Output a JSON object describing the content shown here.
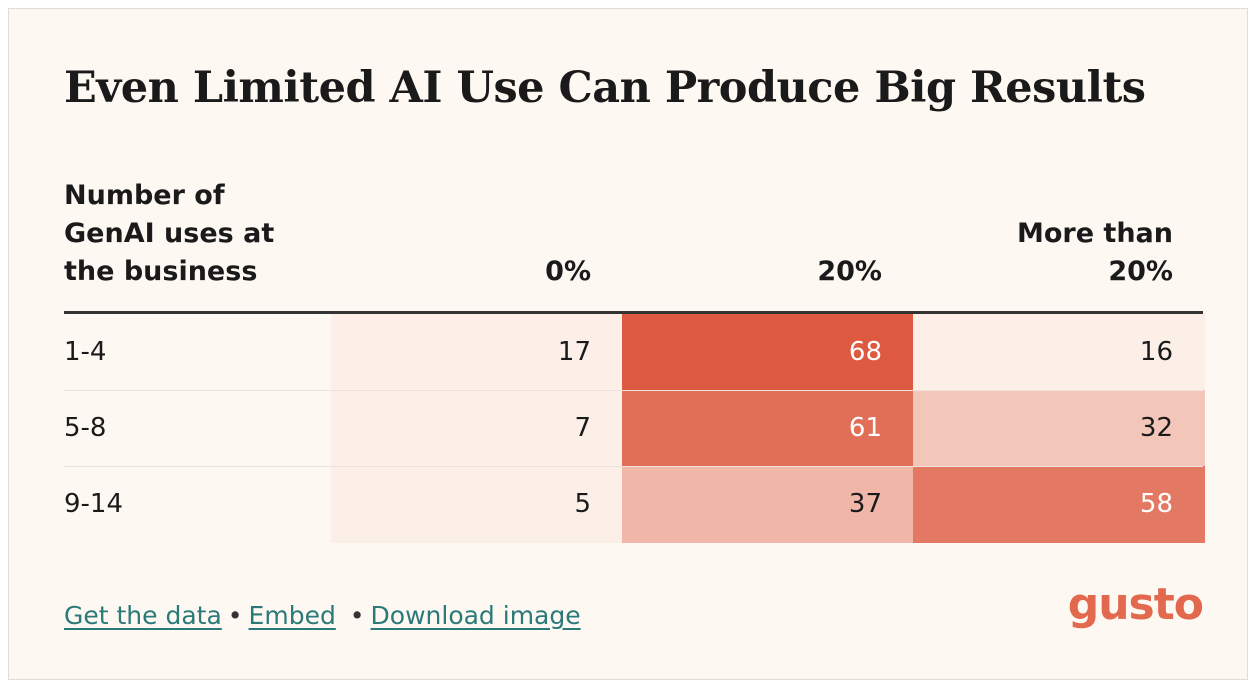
{
  "title": "Even Limited AI Use Can Produce Big Results",
  "chart_data": {
    "type": "table",
    "title": "Even Limited AI Use Can Produce Big Results",
    "row_header": "Number of\nGenAI uses at\nthe business",
    "columns": [
      "0%",
      "20%",
      "More than\n20%"
    ],
    "rows": [
      {
        "label": "1-4",
        "values": [
          17,
          68,
          16
        ]
      },
      {
        "label": "5-8",
        "values": [
          7,
          61,
          32
        ]
      },
      {
        "label": "9-14",
        "values": [
          5,
          37,
          58
        ]
      }
    ],
    "value_range": [
      0,
      68
    ],
    "heat_color": "#dd5a40",
    "low_color": "#fbefe8"
  },
  "footer": {
    "get_data": "Get the data",
    "embed": "Embed",
    "download": "Download image",
    "separator": "•"
  },
  "logo": "gusto"
}
